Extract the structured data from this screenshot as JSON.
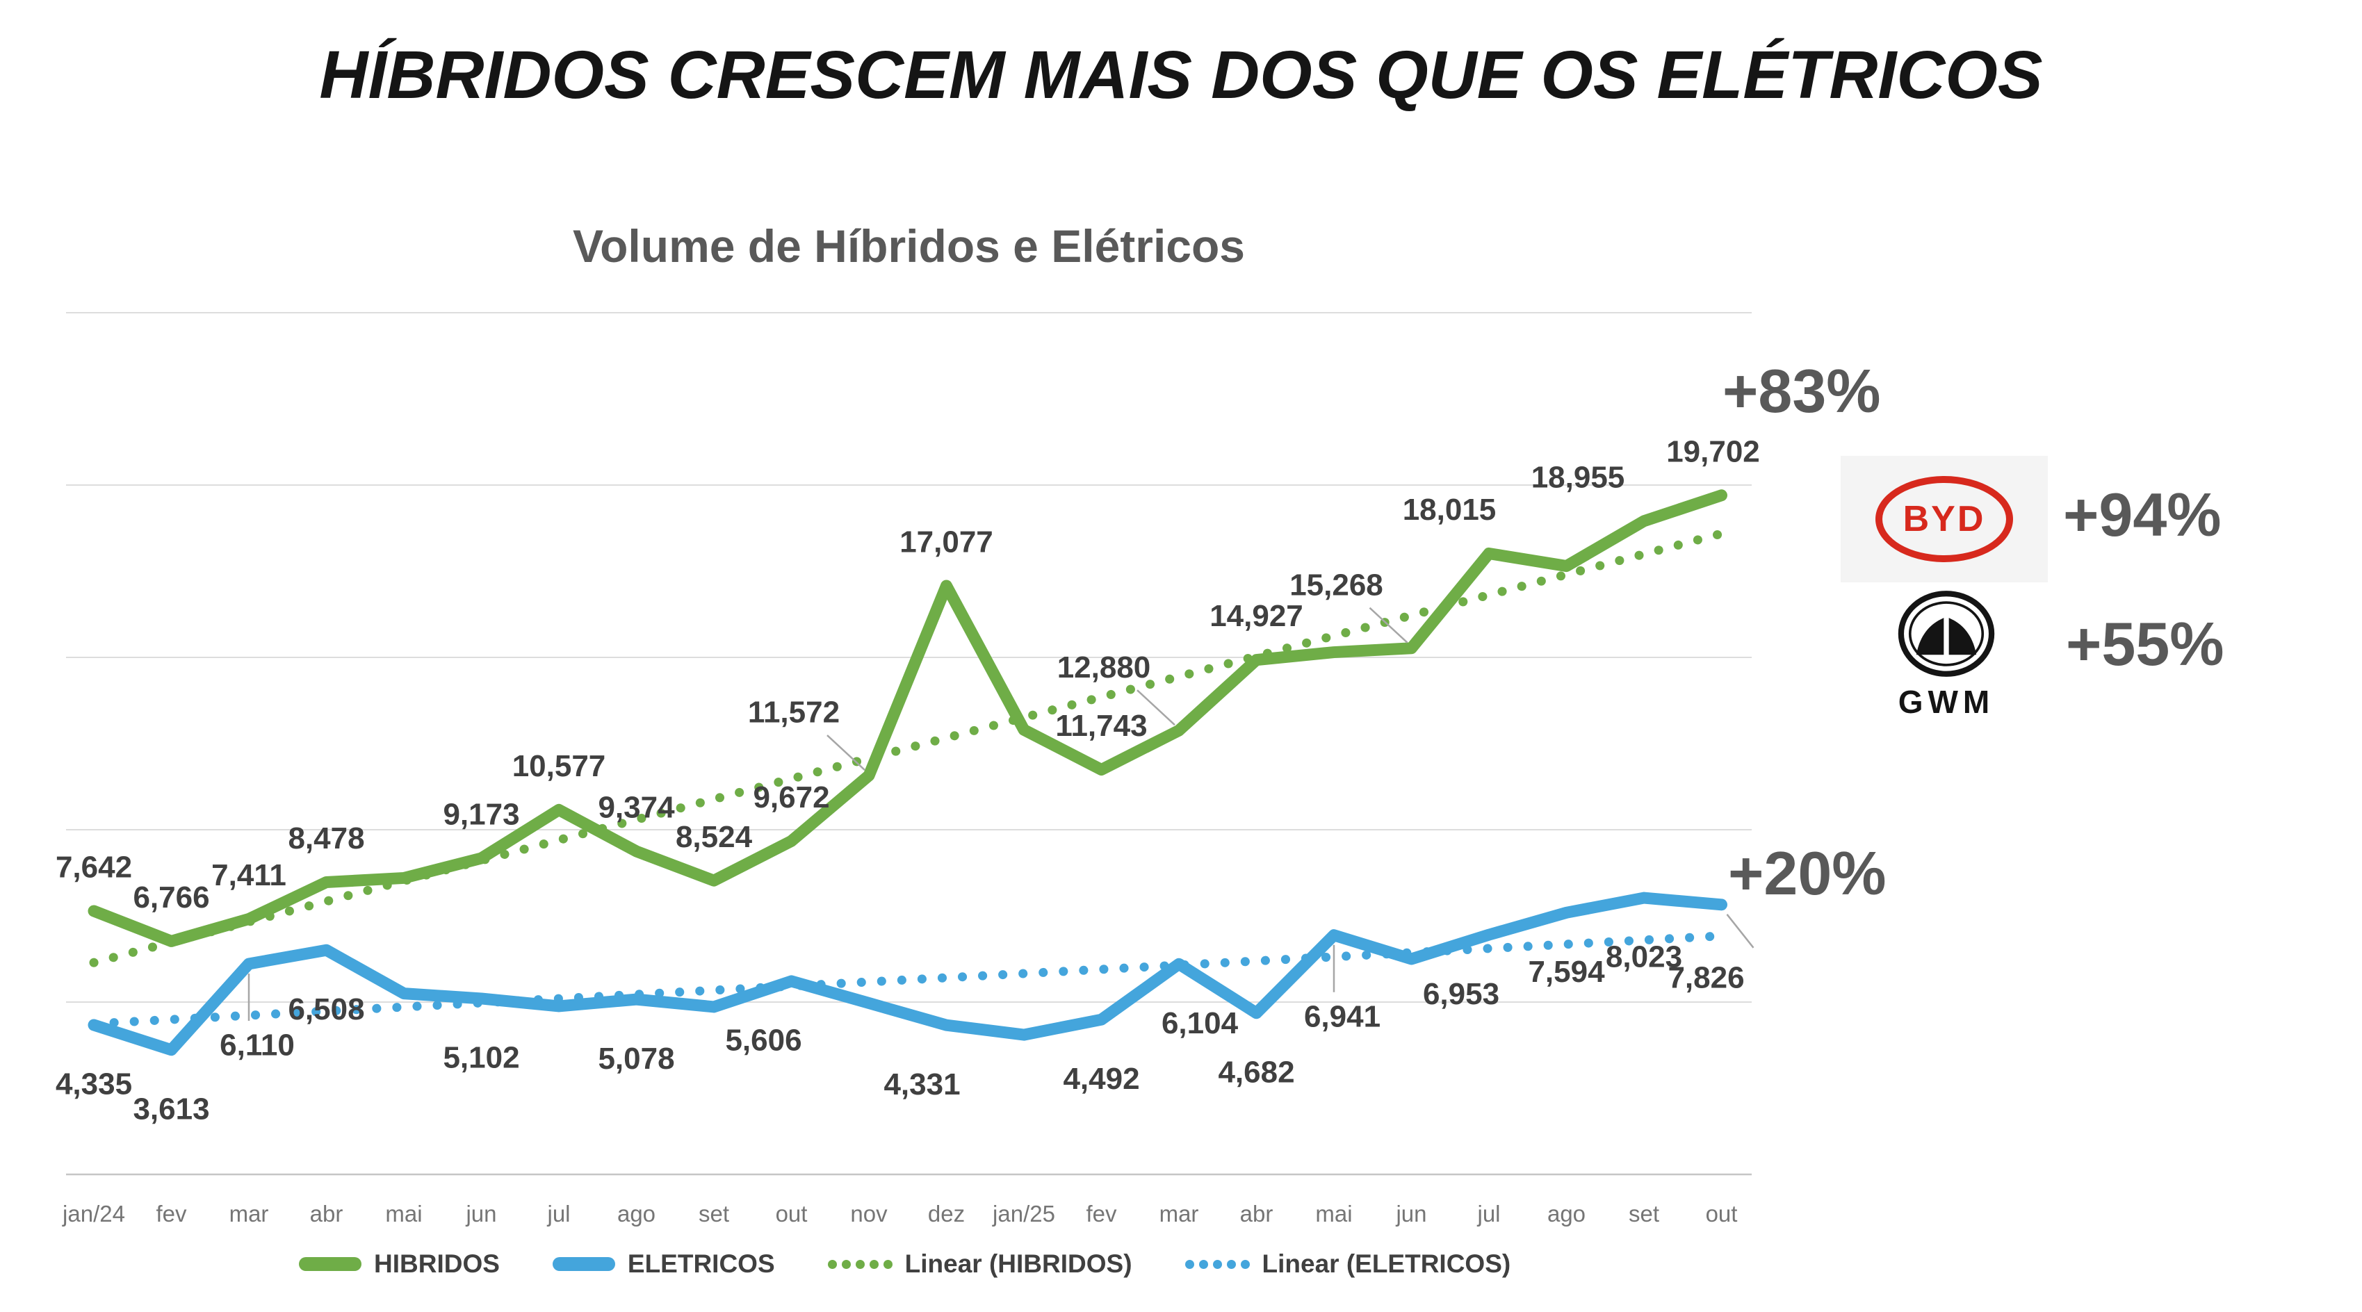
{
  "header": {
    "title": "HÍBRIDOS CRESCEM MAIS DOS QUE OS ELÉTRICOS"
  },
  "chart_data": {
    "type": "line",
    "title": "Volume de Híbridos e Elétricos",
    "categories": [
      "jan/24",
      "fev",
      "mar",
      "abr",
      "mai",
      "jun",
      "jul",
      "ago",
      "set",
      "out",
      "nov",
      "dez",
      "jan/25",
      "fev",
      "mar",
      "abr",
      "mai",
      "jun",
      "jul",
      "ago",
      "set",
      "out"
    ],
    "ylim": [
      0,
      25000
    ],
    "grid_step": 5000,
    "grid_on": true,
    "legend_position": "bottom",
    "series": [
      {
        "name": "HIBRIDOS",
        "color": "#6FAD47",
        "style": "solid",
        "label_side": "above",
        "values": [
          7642,
          6766,
          7411,
          8478,
          8600,
          9173,
          10577,
          9374,
          8524,
          9672,
          11572,
          17077,
          12900,
          11743,
          12880,
          14927,
          15150,
          15268,
          18015,
          17650,
          18955,
          19702
        ],
        "labels": [
          {
            "t": "7,642"
          },
          {
            "t": "6,766"
          },
          {
            "t": "7,411"
          },
          {
            "t": "8,478"
          },
          null,
          {
            "t": "9,173"
          },
          {
            "t": "10,577"
          },
          {
            "t": "9,374"
          },
          {
            "t": "8,524"
          },
          {
            "t": "9,672"
          },
          {
            "t": "11,572",
            "leader": "ul"
          },
          {
            "t": "17,077"
          },
          null,
          {
            "t": "11,743"
          },
          {
            "t": "12,880",
            "leader": "ul"
          },
          {
            "t": "14,927"
          },
          null,
          {
            "t": "15,268",
            "leader": "ul"
          },
          {
            "t": "18,015",
            "dx": -57
          },
          null,
          {
            "t": "18,955",
            "dx": -95
          },
          {
            "t": "19,702",
            "dx": -12
          }
        ]
      },
      {
        "name": "ELETRICOS",
        "color": "#44A5DC",
        "style": "solid",
        "label_side": "below",
        "values": [
          4335,
          3613,
          6110,
          6508,
          5250,
          5102,
          4880,
          5078,
          4860,
          5606,
          4970,
          4331,
          4050,
          4492,
          6104,
          4682,
          6941,
          6250,
          6953,
          7594,
          8023,
          7826
        ],
        "labels": [
          {
            "t": "4,335"
          },
          {
            "t": "3,613"
          },
          {
            "t": "6,110",
            "leader": "v"
          },
          {
            "t": "6,508"
          },
          null,
          {
            "t": "5,102"
          },
          null,
          {
            "t": "5,078"
          },
          null,
          {
            "t": "5,606",
            "dx": -40
          },
          null,
          {
            "t": "4,331",
            "dx": -35
          },
          null,
          {
            "t": "4,492"
          },
          {
            "t": "6,104",
            "dx": 30
          },
          {
            "t": "4,682"
          },
          {
            "t": "6,941",
            "leader": "v"
          },
          null,
          {
            "t": "6,953",
            "dx": -40
          },
          {
            "t": "7,594"
          },
          {
            "t": "8,023"
          },
          {
            "t": "7,826",
            "leader": "dr"
          }
        ]
      },
      {
        "name": "Linear (HIBRIDOS)",
        "color": "#6FAD47",
        "style": "dotted",
        "trend": {
          "start": 6145,
          "end": 18590
        }
      },
      {
        "name": "Linear (ELETRICOS)",
        "color": "#44A5DC",
        "style": "dotted",
        "trend": {
          "start": 4372,
          "end": 6920
        }
      }
    ]
  },
  "annotations": {
    "hibridos_growth": "+83%",
    "byd_growth": "+94%",
    "gwm_growth": "+55%",
    "eletricos_growth": "+20%"
  },
  "logos": {
    "byd": "BYD",
    "gwm": "GWM"
  },
  "legend": {
    "items": [
      {
        "label": "HIBRIDOS"
      },
      {
        "label": "ELETRICOS"
      },
      {
        "label": "Linear (HIBRIDOS)"
      },
      {
        "label": "Linear (ELETRICOS)"
      }
    ]
  },
  "colors": {
    "hibridos": "#6FAD47",
    "eletricos": "#44A5DC",
    "byd_red": "#d7291d",
    "annotation_gray": "#595959",
    "data_label": "#404040",
    "axis_label": "#757575",
    "gridline": "#DDDDDD",
    "axis_line": "#C6C6C6",
    "leader_line": "#A6A6A6"
  }
}
